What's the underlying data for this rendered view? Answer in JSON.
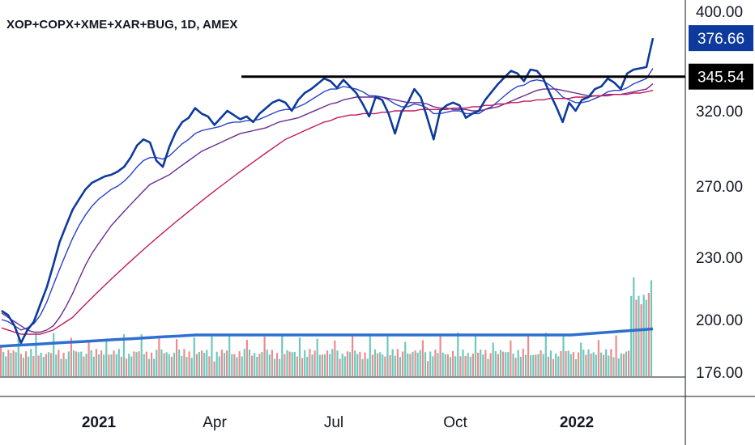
{
  "chart_data": {
    "type": "line",
    "title": "XOP+COPX+XME+XAR+BUG, 1D, AMEX",
    "x_ticks": [
      {
        "label": "2021",
        "bold": true
      },
      {
        "label": "Apr",
        "bold": false
      },
      {
        "label": "Jul",
        "bold": false
      },
      {
        "label": "Oct",
        "bold": false
      },
      {
        "label": "2022",
        "bold": true
      }
    ],
    "y_ticks": [
      "400.00",
      "320.00",
      "270.00",
      "230.00",
      "200.00",
      "176.00"
    ],
    "ylim": [
      176,
      400
    ],
    "y_scale": "log",
    "horizontal_line": {
      "value": 345.54,
      "label": "345.54",
      "color": "#000000"
    },
    "last_price": {
      "value": 376.66,
      "label": "376.66",
      "color": "#0d3a9c"
    },
    "series": [
      {
        "color": "#0d3a9c",
        "values": [
          204,
          202,
          197,
          189,
          195,
          199,
          207,
          215,
          226,
          238,
          247,
          256,
          262,
          268,
          272,
          274,
          276,
          277,
          279,
          282,
          288,
          296,
          300,
          298,
          286,
          282,
          295,
          305,
          312,
          315,
          322,
          318,
          316,
          310,
          315,
          320,
          317,
          314,
          316,
          312,
          318,
          322,
          326,
          328,
          326,
          320,
          328,
          333,
          336,
          340,
          344,
          342,
          337,
          343,
          338,
          333,
          325,
          316,
          330,
          328,
          318,
          304,
          319,
          326,
          336,
          330,
          315,
          300,
          320,
          324,
          326,
          324,
          315,
          318,
          320,
          328,
          334,
          340,
          345,
          350,
          348,
          342,
          351,
          350,
          344,
          333,
          323,
          312,
          326,
          320,
          328,
          330,
          336,
          338,
          344,
          341,
          336,
          348,
          351,
          352,
          353,
          376.66
        ]
      },
      {
        "values": [
          200,
          199,
          197,
          195,
          196,
          198,
          202,
          208,
          216,
          224,
          232,
          240,
          247,
          253,
          258,
          262,
          265,
          268,
          270,
          273,
          277,
          282,
          286,
          288,
          288,
          287,
          289,
          293,
          297,
          300,
          304,
          306,
          307,
          308,
          309,
          311,
          312,
          312,
          313,
          313,
          314,
          316,
          318,
          320,
          321,
          321,
          323,
          325,
          328,
          331,
          334,
          336,
          336,
          338,
          337,
          336,
          334,
          331,
          331,
          330,
          328,
          325,
          323,
          323,
          325,
          324,
          322,
          318,
          318,
          319,
          320,
          320,
          318,
          318,
          318,
          321,
          323,
          327,
          331,
          335,
          338,
          339,
          342,
          343,
          342,
          339,
          335,
          330,
          328,
          326,
          326,
          327,
          329,
          331,
          334,
          335,
          335,
          337,
          340,
          342,
          344,
          352
        ]
      },
      {
        "values": [
          203,
          201,
          199,
          197,
          195,
          194,
          194,
          195,
          197,
          201,
          206,
          212,
          219,
          226,
          232,
          237,
          242,
          247,
          251,
          255,
          259,
          263,
          267,
          271,
          273,
          275,
          277,
          280,
          283,
          286,
          289,
          292,
          294,
          296,
          298,
          300,
          302,
          304,
          305,
          306,
          307,
          308,
          310,
          312,
          313,
          314,
          315,
          317,
          319,
          321,
          323,
          325,
          326,
          328,
          329,
          330,
          330,
          330,
          330,
          330,
          329,
          328,
          327,
          326,
          326,
          326,
          325,
          323,
          322,
          322,
          321,
          321,
          321,
          320,
          320,
          321,
          322,
          323,
          325,
          327,
          329,
          331,
          333,
          335,
          336,
          336,
          336,
          335,
          334,
          333,
          332,
          331,
          331,
          331,
          332,
          332,
          332,
          333,
          334,
          335,
          336,
          340
        ]
      },
      {
        "values": [
          196,
          195,
          194,
          193,
          193,
          193,
          193,
          194,
          195,
          197,
          199,
          201,
          204,
          207,
          210,
          213,
          216,
          219,
          222,
          225,
          228,
          231,
          234,
          237,
          240,
          243,
          246,
          249,
          252,
          255,
          258,
          261,
          264,
          267,
          270,
          273,
          276,
          279,
          282,
          285,
          288,
          291,
          294,
          297,
          300,
          302,
          304,
          306,
          308,
          310,
          312,
          313,
          315,
          316,
          317,
          317,
          318,
          318,
          318,
          319,
          319,
          320,
          320,
          320,
          320,
          321,
          321,
          321,
          321,
          321,
          322,
          322,
          322,
          323,
          323,
          324,
          324,
          325,
          325,
          326,
          326,
          327,
          327,
          328,
          328,
          329,
          329,
          329,
          329,
          330,
          330,
          330,
          331,
          331,
          331,
          332,
          332,
          332,
          333,
          333,
          334,
          335
        ]
      }
    ]
  }
}
